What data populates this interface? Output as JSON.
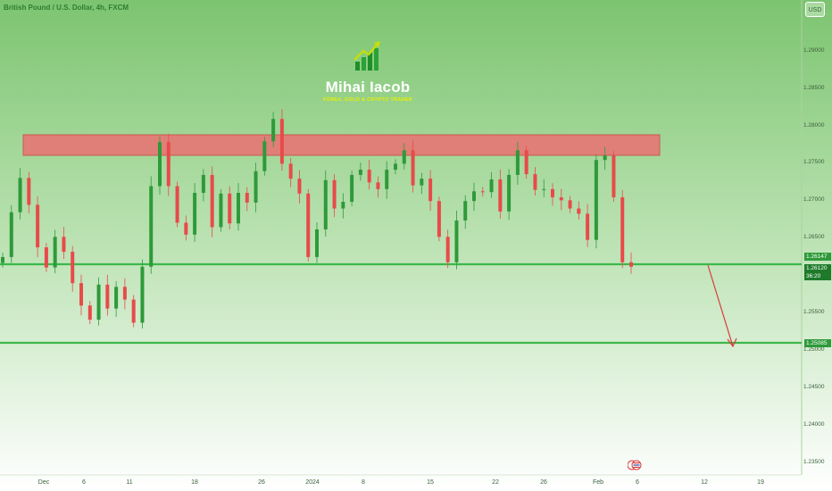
{
  "header": {
    "symbol_title": "British Pound / U.S. Dollar, 4h, FXCM",
    "currency": "USD"
  },
  "watermark": {
    "name": "Mihai Iacob",
    "tagline": "FOREX, GOLD & CRYPTO TRADER",
    "logo_icon": "bar-chart-arrow-icon"
  },
  "colors": {
    "bg_top": "#86c97a",
    "bg_bottom": "#ffffff",
    "up": "#2e9a3a",
    "down": "#e84a4a",
    "resistance": "#e07f77",
    "support": "#3cb84a",
    "arrow": "#d83b3b"
  },
  "price_tags": {
    "support_upper": "1.26147",
    "current": "1.26120",
    "countdown": "36:20",
    "support_lower": "1.25085"
  },
  "events_icon": "economic-events-icon",
  "chart_data": {
    "type": "candlestick",
    "title": "British Pound / U.S. Dollar, 4h, FXCM",
    "y_ticks": [
      "1.29000",
      "1.28500",
      "1.28000",
      "1.27500",
      "1.27000",
      "1.26500",
      "1.25500",
      "1.25000",
      "1.24500",
      "1.24000",
      "1.23500"
    ],
    "x_ticks": [
      "Dec",
      "6",
      "11",
      "18",
      "26",
      "2024",
      "8",
      "15",
      "22",
      "26",
      "Feb",
      "6",
      "12",
      "19"
    ],
    "ylim": [
      1.2335,
      1.294
    ],
    "zones": [
      {
        "kind": "resistance",
        "from": 1.276,
        "to": 1.2785
      }
    ],
    "levels": [
      {
        "kind": "support",
        "price": 1.26147
      },
      {
        "kind": "support",
        "price": 1.25085
      }
    ],
    "projection": {
      "from_label": "Feb",
      "to_label": "19",
      "from_price": 1.2612,
      "to_price": 1.2505
    },
    "series": [
      {
        "values": [
          1.2625,
          1.2685,
          1.2731,
          1.2695,
          1.2638,
          1.2611,
          1.2652,
          1.2632,
          1.259,
          1.256,
          1.2541,
          1.2588,
          1.2556,
          1.2585,
          1.2568,
          1.2537,
          1.2612,
          1.272,
          1.2779,
          1.272,
          1.2671,
          1.2655,
          1.2711,
          1.2735,
          1.2665,
          1.271,
          1.267,
          1.2711,
          1.2698,
          1.274,
          1.278,
          1.281,
          1.275,
          1.273,
          1.271,
          1.2625,
          1.2662,
          1.2728,
          1.269,
          1.2699,
          1.2735,
          1.2742,
          1.2725,
          1.2716,
          1.2742,
          1.275,
          1.2768,
          1.2721,
          1.273,
          1.27,
          1.2652,
          1.2618,
          1.2674,
          1.27,
          1.2713,
          1.2712,
          1.2729,
          1.2686,
          1.2735,
          1.2768,
          1.2736,
          1.2715,
          1.2716,
          1.2705,
          1.2701,
          1.269,
          1.2683,
          1.2648,
          1.2755,
          1.2761,
          1.2705,
          1.2618,
          1.2612
        ]
      }
    ]
  }
}
